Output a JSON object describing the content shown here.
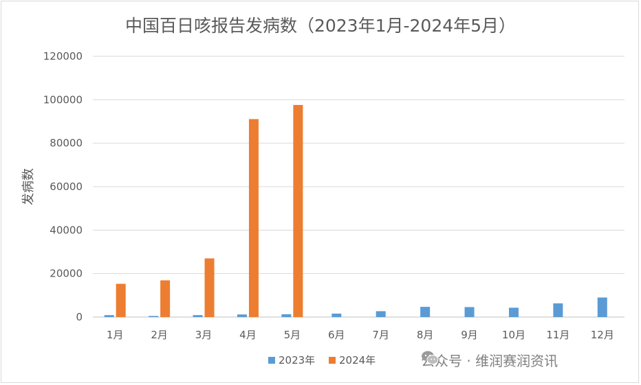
{
  "chart_data": {
    "type": "bar",
    "title": "中国百日咳报告发病数（2023年1月-2024年5月）",
    "xlabel": "",
    "ylabel": "发病数",
    "ylim": [
      0,
      120000
    ],
    "yticks": [
      0,
      20000,
      40000,
      60000,
      80000,
      100000,
      120000
    ],
    "categories": [
      "1月",
      "2月",
      "3月",
      "4月",
      "5月",
      "6月",
      "7月",
      "8月",
      "9月",
      "10月",
      "11月",
      "12月"
    ],
    "series": [
      {
        "name": "2023年",
        "color": "#5B9BD5",
        "values": [
          900,
          500,
          900,
          1200,
          1300,
          1600,
          2700,
          4700,
          4600,
          4300,
          6300,
          9000
        ]
      },
      {
        "name": "2024年",
        "color": "#ED7D31",
        "values": [
          15300,
          16900,
          27000,
          91100,
          97600,
          null,
          null,
          null,
          null,
          null,
          null,
          null
        ]
      }
    ],
    "grid": true,
    "legend": "bottom"
  },
  "watermark": {
    "text": "公众号 · 维润赛润资讯",
    "icon": "wechat-icon"
  }
}
